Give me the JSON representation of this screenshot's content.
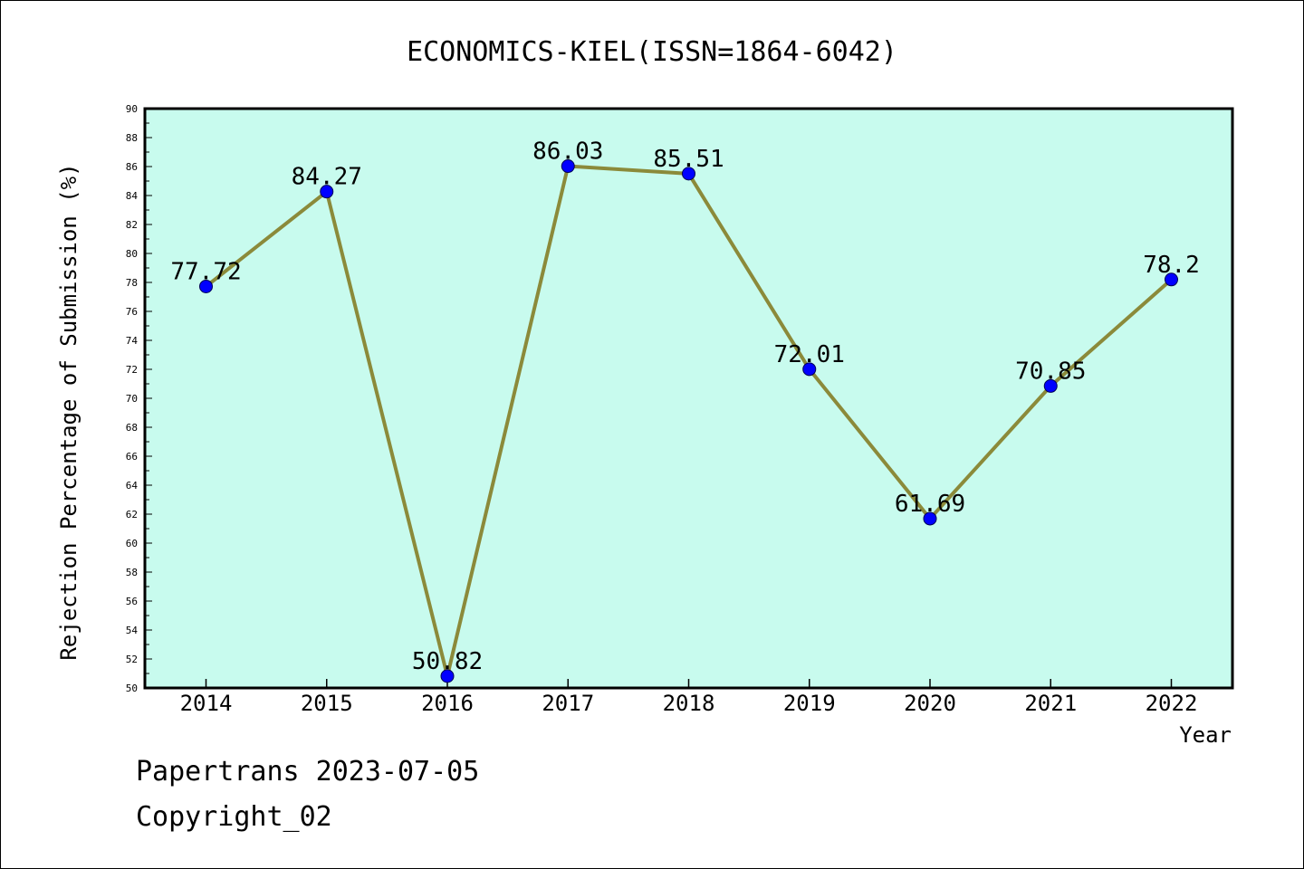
{
  "chart_data": {
    "type": "line",
    "title": "ECONOMICS-KIEL(ISSN=1864-6042)",
    "xlabel": "Year",
    "ylabel": "Rejection Percentage of Submission (%)",
    "categories": [
      "2014",
      "2015",
      "2016",
      "2017",
      "2018",
      "2019",
      "2020",
      "2021",
      "2022"
    ],
    "series": [
      {
        "values": [
          77.72,
          84.27,
          50.82,
          86.03,
          85.51,
          72.01,
          61.69,
          70.85,
          78.2
        ],
        "labels": [
          "77.72",
          "84.27",
          "50.82",
          "86.03",
          "85.51",
          "72.01",
          "61.69",
          "70.85",
          "78.2"
        ],
        "line_color": "#8b8a3a",
        "marker_color": "#0000ff"
      }
    ],
    "ylim": [
      50,
      90
    ],
    "yticks": [
      "50",
      "52",
      "54",
      "56",
      "58",
      "60",
      "62",
      "64",
      "66",
      "68",
      "70",
      "72",
      "74",
      "76",
      "78",
      "80",
      "82",
      "84",
      "86",
      "88",
      "90"
    ],
    "plot_background": "#c8fbee",
    "grid": false,
    "legend": "none"
  },
  "footer": {
    "source": "Papertrans 2023-07-05",
    "copyright": "Copyright_02"
  }
}
